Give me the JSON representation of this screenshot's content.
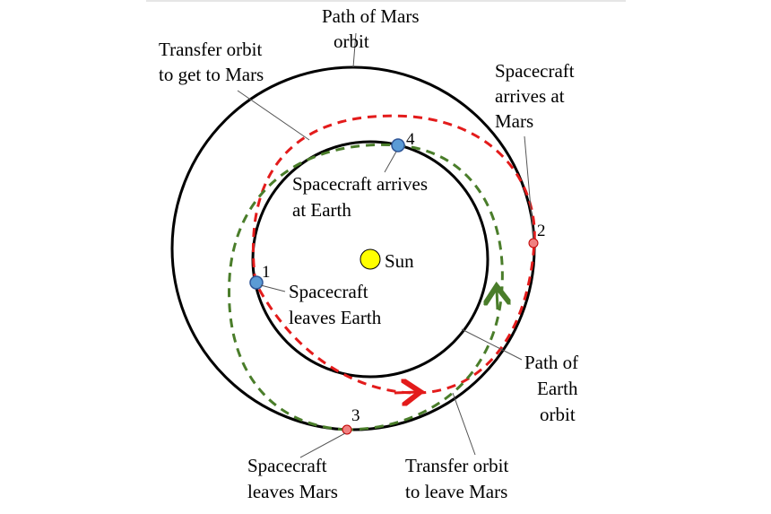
{
  "labels": {
    "mars_path": [
      "Path of Mars",
      "orbit"
    ],
    "transfer_to_mars": [
      "Transfer orbit",
      "to get to Mars"
    ],
    "arrives_mars": [
      "Spacecraft",
      "arrives at",
      "Mars"
    ],
    "arrives_earth": [
      "Spacecraft arrives",
      "at Earth"
    ],
    "sun": "Sun",
    "leaves_earth": [
      "Spacecraft",
      "leaves Earth"
    ],
    "earth_path": [
      "Path of",
      "Earth",
      "orbit"
    ],
    "leaves_mars": [
      "Spacecraft",
      "leaves Mars"
    ],
    "transfer_leave_mars": [
      "Transfer orbit",
      "to leave Mars"
    ]
  },
  "points": {
    "p1": "1",
    "p2": "2",
    "p3": "3",
    "p4": "4"
  },
  "colors": {
    "orbit": "#000000",
    "transfer_to_mars": "#e31b1b",
    "transfer_leave_mars": "#4a7d2a",
    "sun": "#ffff00",
    "earth_marker": "#5b9bd5",
    "mars_marker": "#f08080"
  }
}
